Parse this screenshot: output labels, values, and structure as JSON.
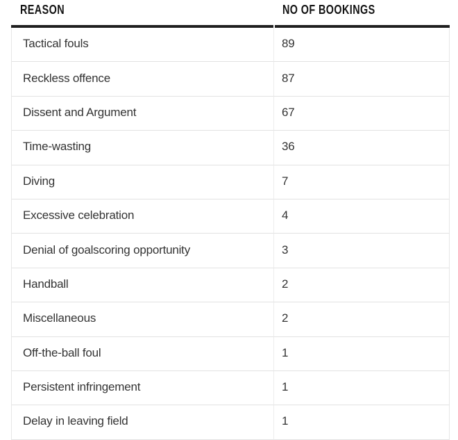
{
  "table": {
    "columns": [
      {
        "label": "REASON"
      },
      {
        "label": "NO OF BOOKINGS"
      }
    ],
    "rows": [
      {
        "reason": "Tactical fouls",
        "bookings": "89"
      },
      {
        "reason": "Reckless offence",
        "bookings": "87"
      },
      {
        "reason": "Dissent and Argument",
        "bookings": "67"
      },
      {
        "reason": "Time-wasting",
        "bookings": "36"
      },
      {
        "reason": "Diving",
        "bookings": "7"
      },
      {
        "reason": "Excessive celebration",
        "bookings": "4"
      },
      {
        "reason": "Denial of goalscoring opportunity",
        "bookings": "3"
      },
      {
        "reason": "Handball",
        "bookings": "2"
      },
      {
        "reason": "Miscellaneous",
        "bookings": "2"
      },
      {
        "reason": "Off-the-ball foul",
        "bookings": "1"
      },
      {
        "reason": "Persistent infringement",
        "bookings": "1"
      },
      {
        "reason": "Delay in leaving field",
        "bookings": "1"
      }
    ]
  },
  "colors": {
    "header_text": "#141414",
    "body_text": "#333333",
    "header_rule": "#1f1f1f",
    "row_border": "#e2e2e2",
    "column_divider": "#ececec",
    "outer_border": "#e7e7e7",
    "background": "#ffffff"
  },
  "chart_data": {
    "type": "table",
    "title": "",
    "columns": [
      "REASON",
      "NO OF BOOKINGS"
    ],
    "rows": [
      [
        "Tactical fouls",
        89
      ],
      [
        "Reckless offence",
        87
      ],
      [
        "Dissent and Argument",
        67
      ],
      [
        "Time-wasting",
        36
      ],
      [
        "Diving",
        7
      ],
      [
        "Excessive celebration",
        4
      ],
      [
        "Denial of goalscoring opportunity",
        3
      ],
      [
        "Handball",
        2
      ],
      [
        "Miscellaneous",
        2
      ],
      [
        "Off-the-ball foul",
        1
      ],
      [
        "Persistent infringement",
        1
      ],
      [
        "Delay in leaving field",
        1
      ]
    ]
  }
}
